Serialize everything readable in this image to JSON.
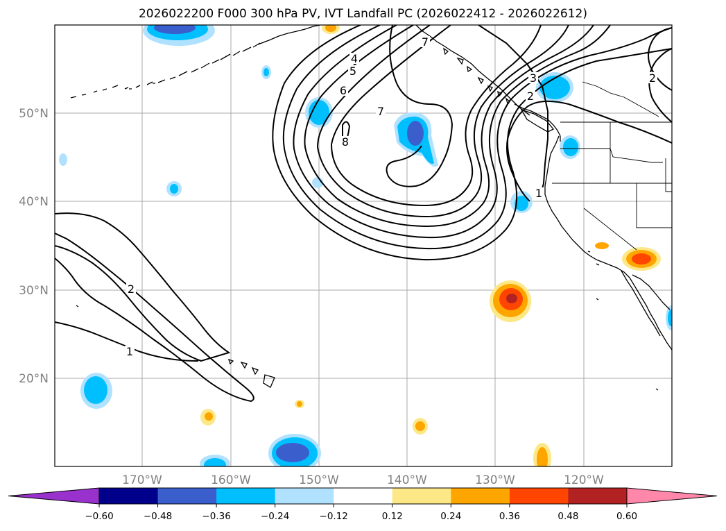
{
  "title": "2026022200 F000 300 hPa PV, IVT Landfall PC (2026022412 - 2026022612)",
  "map": {
    "lat_labels": [
      "50°N",
      "40°N",
      "30°N",
      "20°N"
    ],
    "lon_labels": [
      "170°W",
      "160°W",
      "150°W",
      "140°W",
      "130°W",
      "120°W"
    ],
    "pv_contour_labels": [
      "1",
      "2",
      "3",
      "4",
      "5",
      "6",
      "7",
      "8"
    ],
    "grid_lines": true,
    "colors": {
      "coastline": "#000000",
      "grid": "#aaaaaa",
      "contour": "#000000"
    }
  },
  "colorbar": {
    "tick_labels": [
      "−0.60",
      "−0.48",
      "−0.36",
      "−0.24",
      "−0.12",
      "0.12",
      "0.24",
      "0.36",
      "0.48",
      "0.60"
    ],
    "colors": [
      "#9932cc",
      "#00008b",
      "#3a5fcd",
      "#00bfff",
      "#b0e2ff",
      "#ffffff",
      "#fce886",
      "#ffa500",
      "#ff4500",
      "#b22222",
      "#ff88aa"
    ]
  }
}
